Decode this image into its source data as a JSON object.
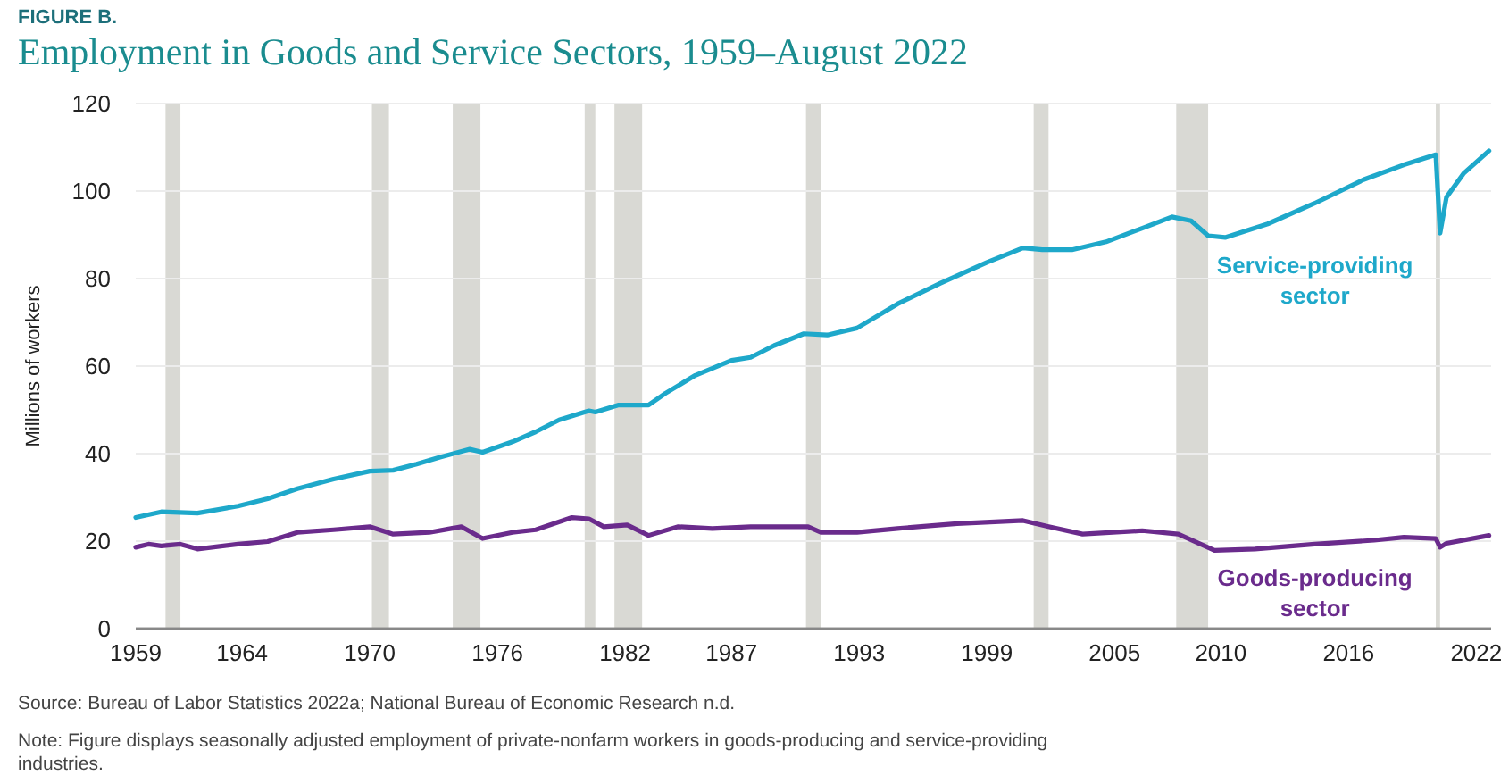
{
  "chart_data": {
    "type": "line",
    "title": "Employment in Goods and Service Sectors, 1959–August 2022",
    "ylabel": "Millions of workers",
    "annotations": [
      "FIGURE B.",
      "Source: Bureau of Labor Statistics 2022a; National Bureau of Economic Research n.d.",
      "Note: Figure displays seasonally adjusted employment of private-nonfarm workers in goods-producing and service-providing industries."
    ],
    "xlim": [
      1959,
      2022.7
    ],
    "ylim": [
      0,
      120
    ],
    "xticks": [
      1959,
      1964,
      1970,
      1976,
      1982,
      1987,
      1993,
      1999,
      2005,
      2010,
      2016,
      2022
    ],
    "yticks": [
      0,
      20,
      40,
      60,
      80,
      100,
      120
    ],
    "grid": "y",
    "line_style": "solid",
    "marker": "none",
    "bands": [
      {
        "axis": "x",
        "from": 1960.4,
        "to": 1961.1,
        "color": "#d9d9d4"
      },
      {
        "axis": "x",
        "from": 1970.1,
        "to": 1970.9,
        "color": "#d9d9d4"
      },
      {
        "axis": "x",
        "from": 1973.9,
        "to": 1975.2,
        "color": "#d9d9d4"
      },
      {
        "axis": "x",
        "from": 1980.1,
        "to": 1980.6,
        "color": "#d9d9d4"
      },
      {
        "axis": "x",
        "from": 1981.5,
        "to": 1982.8,
        "color": "#d9d9d4"
      },
      {
        "axis": "x",
        "from": 1990.5,
        "to": 1991.2,
        "color": "#d9d9d4"
      },
      {
        "axis": "x",
        "from": 2001.2,
        "to": 2001.9,
        "color": "#d9d9d4"
      },
      {
        "axis": "x",
        "from": 2007.9,
        "to": 2009.4,
        "color": "#d9d9d4"
      },
      {
        "axis": "x",
        "from": 2020.1,
        "to": 2020.3,
        "color": "#d9d9d4"
      }
    ],
    "series": [
      {
        "name": "Service-providing sector",
        "color": "#1ea8ca",
        "x": [
          1959,
          1960.2,
          1961.9,
          1963.8,
          1965.2,
          1966.6,
          1968.3,
          1970,
          1971.1,
          1972.2,
          1973.3,
          1974.7,
          1975.3,
          1976.7,
          1977.8,
          1978.9,
          1980.3,
          1980.6,
          1981.7,
          1983.1,
          1983.9,
          1985.3,
          1987,
          1987.9,
          1989,
          1990.4,
          1991.5,
          1992.9,
          1994.8,
          1996.8,
          1999,
          2000.7,
          2001.6,
          2003,
          2004.6,
          2006.3,
          2007.7,
          2008.6,
          2009.4,
          2010.2,
          2012.2,
          2014.4,
          2016.7,
          2018.6,
          2020.1,
          2020.3,
          2020.6,
          2021.4,
          2022.6
        ],
        "values": [
          25.4,
          26.7,
          26.4,
          28,
          29.7,
          32,
          34.2,
          36,
          36.2,
          37.6,
          39.2,
          41,
          40.3,
          42.7,
          45,
          47.7,
          49.8,
          49.5,
          51.1,
          51.1,
          53.8,
          57.9,
          61.3,
          62,
          64.7,
          67.4,
          67.1,
          68.7,
          74.2,
          78.9,
          83.7,
          87,
          86.6,
          86.6,
          88.4,
          91.5,
          94.1,
          93.2,
          89.8,
          89.4,
          92.5,
          97.2,
          102.6,
          106,
          108.3,
          90.4,
          98.6,
          104,
          109.2
        ]
      },
      {
        "name": "Goods-producing sector",
        "color": "#6a2b8c",
        "x": [
          1959,
          1959.6,
          1960.2,
          1961.1,
          1961.9,
          1963.8,
          1965.2,
          1966.6,
          1968.3,
          1970,
          1971.1,
          1972.8,
          1974.3,
          1975.3,
          1976.7,
          1977.8,
          1979.5,
          1980.3,
          1981,
          1982.1,
          1983.1,
          1984.5,
          1986.1,
          1987.9,
          1990.6,
          1991.2,
          1992.9,
          1994.8,
          1997.6,
          2000.7,
          2001.9,
          2003.5,
          2006.3,
          2008,
          2009.7,
          2011.6,
          2014.4,
          2017.2,
          2018.6,
          2020.1,
          2020.3,
          2020.6,
          2022.6
        ],
        "values": [
          18.6,
          19.3,
          18.9,
          19.3,
          18.2,
          19.3,
          19.9,
          22,
          22.6,
          23.3,
          21.6,
          22,
          23.3,
          20.6,
          22,
          22.6,
          25.4,
          25.1,
          23.3,
          23.7,
          21.3,
          23.3,
          22.9,
          23.3,
          23.3,
          22,
          22,
          22.9,
          24,
          24.7,
          23.3,
          21.6,
          22.4,
          21.6,
          17.9,
          18.2,
          19.3,
          20.2,
          20.9,
          20.6,
          18.6,
          19.5,
          21.3
        ]
      }
    ]
  }
}
